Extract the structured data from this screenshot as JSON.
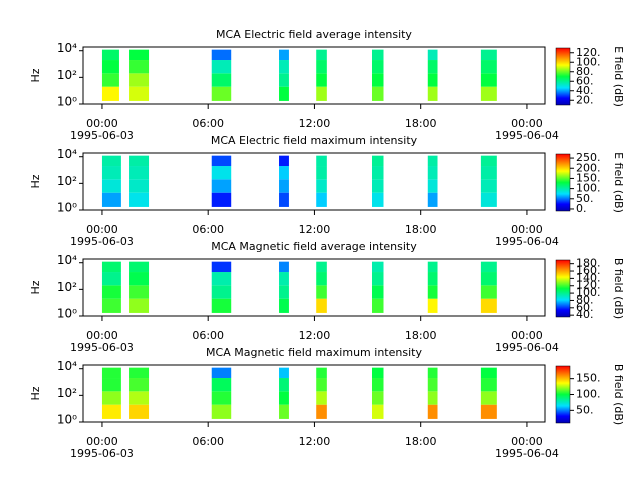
{
  "chart_data": [
    {
      "type": "heatmap",
      "title": "MCA  Electric field average intensity",
      "ylabel": "Hz",
      "ylog": true,
      "ylim": [
        1,
        19000
      ],
      "yticks": [
        {
          "value": 1,
          "label": "10⁰"
        },
        {
          "value": 100,
          "label": "10²"
        },
        {
          "value": 10000,
          "label": "10⁴"
        }
      ],
      "xlim": [
        -1.07,
        25.02
      ],
      "xticks": [
        {
          "value": 0,
          "label": "00:00"
        },
        {
          "value": 6,
          "label": "06:00"
        },
        {
          "value": 12,
          "label": "12:00"
        },
        {
          "value": 18,
          "label": "18:00"
        },
        {
          "value": 24,
          "label": "00:00"
        }
      ],
      "x_dates": [
        {
          "value": 0,
          "label": "1995-06-03"
        },
        {
          "value": 24,
          "label": "1995-06-04"
        }
      ],
      "ybins": [
        1.7,
        20,
        200,
        2000,
        12000
      ],
      "segments": [
        {
          "start": 0.0,
          "end": 0.96,
          "values": [
            95,
            75,
            70,
            65
          ]
        },
        {
          "start": 1.53,
          "end": 2.66,
          "values": [
            90,
            85,
            75,
            70
          ]
        },
        {
          "start": 6.2,
          "end": 7.3,
          "values": [
            80,
            65,
            55,
            35
          ]
        },
        {
          "start": 10.0,
          "end": 10.56,
          "values": [
            70,
            60,
            55,
            40
          ]
        },
        {
          "start": 12.1,
          "end": 12.7,
          "values": [
            85,
            70,
            65,
            60
          ]
        },
        {
          "start": 15.25,
          "end": 15.9,
          "values": [
            80,
            70,
            65,
            60
          ]
        },
        {
          "start": 18.4,
          "end": 18.95,
          "values": [
            85,
            70,
            65,
            55
          ]
        },
        {
          "start": 21.4,
          "end": 22.3,
          "values": [
            85,
            70,
            65,
            60
          ]
        }
      ],
      "colorbar_label": "E field (dB)",
      "zlim": [
        10,
        130
      ],
      "zticks": [
        {
          "value": 20,
          "label": "20."
        },
        {
          "value": 40,
          "label": "40."
        },
        {
          "value": 60,
          "label": "60."
        },
        {
          "value": 80,
          "label": "80."
        },
        {
          "value": 100,
          "label": "100."
        },
        {
          "value": 120,
          "label": "120."
        }
      ]
    },
    {
      "type": "heatmap",
      "title": "MCA  Electric field maximum intensity",
      "ylabel": "Hz",
      "ylog": true,
      "ylim": [
        1,
        19000
      ],
      "yticks": [
        {
          "value": 1,
          "label": "10⁰"
        },
        {
          "value": 100,
          "label": "10²"
        },
        {
          "value": 10000,
          "label": "10⁴"
        }
      ],
      "xlim": [
        -1.07,
        25.02
      ],
      "xticks": [
        {
          "value": 0,
          "label": "00:00"
        },
        {
          "value": 6,
          "label": "06:00"
        },
        {
          "value": 12,
          "label": "12:00"
        },
        {
          "value": 18,
          "label": "18:00"
        },
        {
          "value": 24,
          "label": "00:00"
        }
      ],
      "x_dates": [
        {
          "value": 0,
          "label": "1995-06-03"
        },
        {
          "value": 24,
          "label": "1995-06-04"
        }
      ],
      "ybins": [
        1.7,
        20,
        200,
        2000,
        12000
      ],
      "segments": [
        {
          "start": 0.0,
          "end": 1.07,
          "values": [
            60,
            85,
            95,
            100
          ]
        },
        {
          "start": 1.53,
          "end": 2.66,
          "values": [
            80,
            90,
            95,
            100
          ]
        },
        {
          "start": 6.2,
          "end": 7.3,
          "values": [
            30,
            60,
            80,
            40
          ]
        },
        {
          "start": 10.0,
          "end": 10.56,
          "values": [
            40,
            60,
            70,
            30
          ]
        },
        {
          "start": 12.1,
          "end": 12.7,
          "values": [
            70,
            90,
            100,
            100
          ]
        },
        {
          "start": 15.25,
          "end": 15.9,
          "values": [
            80,
            95,
            100,
            105
          ]
        },
        {
          "start": 18.4,
          "end": 18.95,
          "values": [
            60,
            85,
            95,
            100
          ]
        },
        {
          "start": 21.4,
          "end": 22.3,
          "values": [
            85,
            95,
            100,
            105
          ]
        }
      ],
      "colorbar_label": "E field (dB)",
      "zlim": [
        -10,
        270
      ],
      "zticks": [
        {
          "value": 0,
          "label": "0."
        },
        {
          "value": 50,
          "label": "50."
        },
        {
          "value": 100,
          "label": "100."
        },
        {
          "value": 150,
          "label": "150."
        },
        {
          "value": 200,
          "label": "200."
        },
        {
          "value": 250,
          "label": "250."
        }
      ]
    },
    {
      "type": "heatmap",
      "title": "MCA  Magnetic field average intensity",
      "ylabel": "Hz",
      "ylog": true,
      "ylim": [
        1,
        19000
      ],
      "yticks": [
        {
          "value": 1,
          "label": "10⁰"
        },
        {
          "value": 100,
          "label": "10²"
        },
        {
          "value": 10000,
          "label": "10⁴"
        }
      ],
      "xlim": [
        -1.07,
        25.02
      ],
      "xticks": [
        {
          "value": 0,
          "label": "00:00"
        },
        {
          "value": 6,
          "label": "06:00"
        },
        {
          "value": 12,
          "label": "12:00"
        },
        {
          "value": 18,
          "label": "18:00"
        },
        {
          "value": 24,
          "label": "00:00"
        }
      ],
      "x_dates": [
        {
          "value": 0,
          "label": "1995-06-03"
        },
        {
          "value": 24,
          "label": "1995-06-04"
        }
      ],
      "ybins": [
        1.7,
        20,
        200,
        2000,
        12000
      ],
      "segments": [
        {
          "start": 0.0,
          "end": 1.07,
          "values": [
            120,
            115,
            100,
            105
          ]
        },
        {
          "start": 1.53,
          "end": 2.66,
          "values": [
            130,
            120,
            110,
            105
          ]
        },
        {
          "start": 6.2,
          "end": 7.3,
          "values": [
            115,
            100,
            95,
            60
          ]
        },
        {
          "start": 10.0,
          "end": 10.56,
          "values": [
            110,
            100,
            95,
            70
          ]
        },
        {
          "start": 12.1,
          "end": 12.7,
          "values": [
            150,
            120,
            105,
            100
          ]
        },
        {
          "start": 15.25,
          "end": 15.9,
          "values": [
            120,
            110,
            100,
            95
          ]
        },
        {
          "start": 18.4,
          "end": 18.95,
          "values": [
            145,
            115,
            105,
            100
          ]
        },
        {
          "start": 21.4,
          "end": 22.3,
          "values": [
            150,
            120,
            105,
            100
          ]
        }
      ],
      "colorbar_label": "B field (dB)",
      "zlim": [
        35,
        190
      ],
      "zticks": [
        {
          "value": 40,
          "label": "40."
        },
        {
          "value": 60,
          "label": "60."
        },
        {
          "value": 80,
          "label": "80."
        },
        {
          "value": 100,
          "label": "100."
        },
        {
          "value": 120,
          "label": "120."
        },
        {
          "value": 140,
          "label": "140."
        },
        {
          "value": 160,
          "label": "160."
        },
        {
          "value": 180,
          "label": "180."
        }
      ]
    },
    {
      "type": "heatmap",
      "title": "MCA  Magnetic field maximum intensity",
      "ylabel": "Hz",
      "ylog": true,
      "ylim": [
        1,
        19000
      ],
      "yticks": [
        {
          "value": 1,
          "label": "10⁰"
        },
        {
          "value": 100,
          "label": "10²"
        },
        {
          "value": 10000,
          "label": "10⁴"
        }
      ],
      "xlim": [
        -1.07,
        25.02
      ],
      "xticks": [
        {
          "value": 0,
          "label": "00:00"
        },
        {
          "value": 6,
          "label": "06:00"
        },
        {
          "value": 12,
          "label": "12:00"
        },
        {
          "value": 18,
          "label": "18:00"
        },
        {
          "value": 24,
          "label": "00:00"
        }
      ],
      "x_dates": [
        {
          "value": 0,
          "label": "1995-06-03"
        },
        {
          "value": 24,
          "label": "1995-06-04"
        }
      ],
      "ybins": [
        1.7,
        20,
        200,
        2000,
        12000
      ],
      "segments": [
        {
          "start": 0.0,
          "end": 1.07,
          "values": [
            140,
            120,
            105,
            105
          ]
        },
        {
          "start": 1.53,
          "end": 2.66,
          "values": [
            145,
            125,
            110,
            105
          ]
        },
        {
          "start": 6.2,
          "end": 7.3,
          "values": [
            120,
            105,
            95,
            50
          ]
        },
        {
          "start": 10.0,
          "end": 10.56,
          "values": [
            115,
            100,
            90,
            60
          ]
        },
        {
          "start": 12.1,
          "end": 12.7,
          "values": [
            160,
            125,
            110,
            105
          ]
        },
        {
          "start": 15.25,
          "end": 15.9,
          "values": [
            130,
            115,
            105,
            100
          ]
        },
        {
          "start": 18.4,
          "end": 18.95,
          "values": [
            160,
            120,
            110,
            105
          ]
        },
        {
          "start": 21.4,
          "end": 22.3,
          "values": [
            160,
            120,
            105,
            100
          ]
        }
      ],
      "colorbar_label": "B field (dB)",
      "zlim": [
        10,
        190
      ],
      "zticks": [
        {
          "value": 50,
          "label": "50."
        },
        {
          "value": 100,
          "label": "100."
        },
        {
          "value": 150,
          "label": "150."
        }
      ]
    }
  ]
}
